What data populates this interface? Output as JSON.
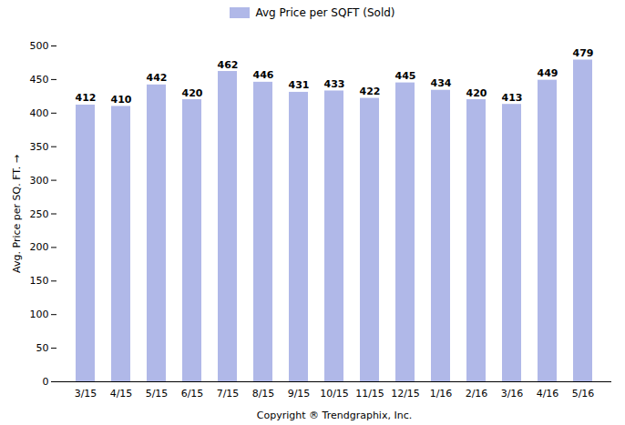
{
  "chart_data": {
    "type": "bar",
    "categories": [
      "3/15",
      "4/15",
      "5/15",
      "6/15",
      "7/15",
      "8/15",
      "9/15",
      "10/15",
      "11/15",
      "12/15",
      "1/16",
      "2/16",
      "3/16",
      "4/16",
      "5/16"
    ],
    "series": [
      {
        "name": "Avg Price per SQFT (Sold)",
        "color": "#b0b8e8",
        "values": [
          412,
          410,
          442,
          420,
          462,
          446,
          431,
          433,
          422,
          445,
          434,
          420,
          413,
          449,
          479
        ]
      }
    ],
    "xlabel": "Copyright ® Trendgraphix, Inc.",
    "ylabel": "Avg. Price per SQ. FT.",
    "ylim": [
      0,
      500
    ],
    "yticks": [
      0,
      50,
      100,
      150,
      200,
      250,
      300,
      350,
      400,
      450,
      500
    ],
    "grid": false,
    "legend": "top",
    "data_labels": true
  }
}
